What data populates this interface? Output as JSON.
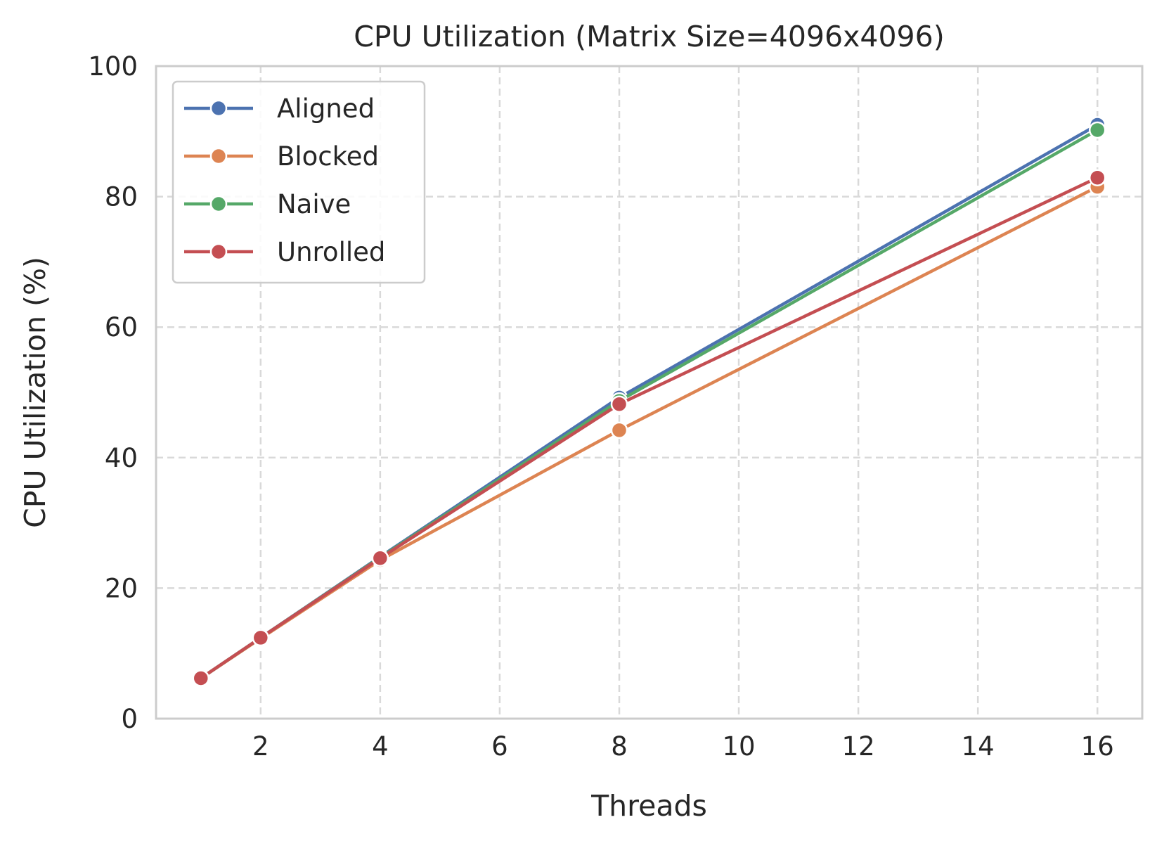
{
  "chart_data": {
    "type": "line",
    "title": "CPU Utilization (Matrix Size=4096x4096)",
    "xlabel": "Threads",
    "ylabel": "CPU Utilization (%)",
    "xlim": [
      0.25,
      16.75
    ],
    "ylim": [
      0,
      100
    ],
    "xticks": [
      2,
      4,
      6,
      8,
      10,
      12,
      14,
      16
    ],
    "yticks": [
      0,
      20,
      40,
      60,
      80,
      100
    ],
    "grid": true,
    "legend_position": "top-left",
    "x": [
      1,
      2,
      4,
      8,
      16
    ],
    "series": [
      {
        "name": "Aligned",
        "color": "#4c72b0",
        "values": [
          6.2,
          12.4,
          24.8,
          49.2,
          91.0
        ]
      },
      {
        "name": "Blocked",
        "color": "#dd8452",
        "values": [
          6.2,
          12.3,
          24.3,
          44.2,
          81.5
        ]
      },
      {
        "name": "Naive",
        "color": "#55a868",
        "values": [
          6.2,
          12.4,
          24.7,
          48.7,
          90.2
        ]
      },
      {
        "name": "Unrolled",
        "color": "#c44e52",
        "values": [
          6.2,
          12.4,
          24.6,
          48.2,
          82.9
        ]
      }
    ]
  }
}
